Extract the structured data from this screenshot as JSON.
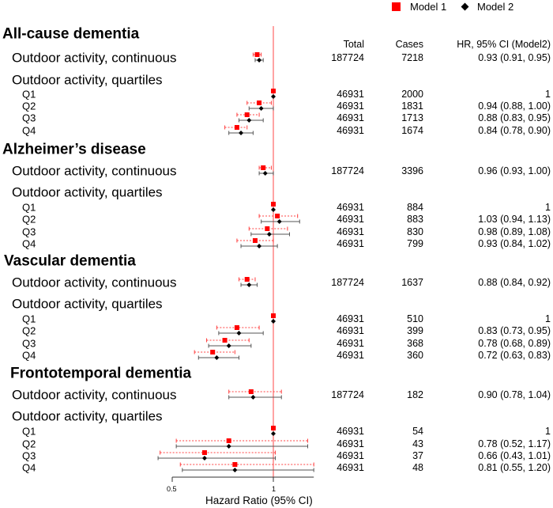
{
  "legend": {
    "model1": "Model 1",
    "model2": "Model 2"
  },
  "colors": {
    "model1": "#ff0000",
    "model2": "#000000",
    "reference_line": "#ff6666"
  },
  "columns": {
    "total": "Total",
    "cases": "Cases",
    "hr": "HR, 95% CI (Model2)"
  },
  "chart_data": {
    "type": "forest",
    "xlabel": "Hazard Ratio (95% CI)",
    "x_ticks": [
      "0.5",
      "1"
    ],
    "x_scale": "linear",
    "xlim": [
      0.5,
      1.2
    ],
    "reference_line": 1,
    "groups": [
      {
        "title": "All-cause dementia",
        "continuous": {
          "label": "Outdoor activity, continuous",
          "total": "187724",
          "cases": "7218",
          "hr_text": "0.93 (0.91, 0.95)",
          "model1": {
            "hr": 0.92,
            "lo": 0.9,
            "hi": 0.94
          },
          "model2": {
            "hr": 0.93,
            "lo": 0.91,
            "hi": 0.95
          }
        },
        "quartiles_label": "Outdoor activity, quartiles",
        "quartiles": [
          {
            "label": "Q1",
            "total": "46931",
            "cases": "2000",
            "hr_text": "1",
            "model1": {
              "hr": 1
            },
            "model2": {
              "hr": 1
            }
          },
          {
            "label": "Q2",
            "total": "46931",
            "cases": "1831",
            "hr_text": "0.94 (0.88, 1.00)",
            "model1": {
              "hr": 0.93,
              "lo": 0.87,
              "hi": 0.99
            },
            "model2": {
              "hr": 0.94,
              "lo": 0.88,
              "hi": 1.0
            }
          },
          {
            "label": "Q3",
            "total": "46931",
            "cases": "1713",
            "hr_text": "0.88 (0.83, 0.95)",
            "model1": {
              "hr": 0.87,
              "lo": 0.82,
              "hi": 0.93
            },
            "model2": {
              "hr": 0.88,
              "lo": 0.83,
              "hi": 0.95
            }
          },
          {
            "label": "Q4",
            "total": "46931",
            "cases": "1674",
            "hr_text": "0.84 (0.78, 0.90)",
            "model1": {
              "hr": 0.82,
              "lo": 0.76,
              "hi": 0.87
            },
            "model2": {
              "hr": 0.84,
              "lo": 0.78,
              "hi": 0.9
            }
          }
        ]
      },
      {
        "title": "Alzheimer’s disease",
        "continuous": {
          "label": "Outdoor activity, continuous",
          "total": "187724",
          "cases": "3396",
          "hr_text": "0.96 (0.93, 1.00)",
          "model1": {
            "hr": 0.95,
            "lo": 0.93,
            "hi": 0.99
          },
          "model2": {
            "hr": 0.96,
            "lo": 0.93,
            "hi": 1.0
          }
        },
        "quartiles_label": "Outdoor activity, quartiles",
        "quartiles": [
          {
            "label": "Q1",
            "total": "46931",
            "cases": "884",
            "hr_text": "1",
            "model1": {
              "hr": 1
            },
            "model2": {
              "hr": 1
            }
          },
          {
            "label": "Q2",
            "total": "46931",
            "cases": "883",
            "hr_text": "1.03 (0.94, 1.13)",
            "model1": {
              "hr": 1.02,
              "lo": 0.93,
              "hi": 1.12
            },
            "model2": {
              "hr": 1.03,
              "lo": 0.94,
              "hi": 1.13
            }
          },
          {
            "label": "Q3",
            "total": "46931",
            "cases": "830",
            "hr_text": "0.98 (0.89, 1.08)",
            "model1": {
              "hr": 0.97,
              "lo": 0.88,
              "hi": 1.07
            },
            "model2": {
              "hr": 0.98,
              "lo": 0.89,
              "hi": 1.08
            }
          },
          {
            "label": "Q4",
            "total": "46931",
            "cases": "799",
            "hr_text": "0.93 (0.84, 1.02)",
            "model1": {
              "hr": 0.91,
              "lo": 0.82,
              "hi": 1.0
            },
            "model2": {
              "hr": 0.93,
              "lo": 0.84,
              "hi": 1.02
            }
          }
        ]
      },
      {
        "title": "Vascular dementia",
        "continuous": {
          "label": "Outdoor activity, continuous",
          "total": "187724",
          "cases": "1637",
          "hr_text": "0.88 (0.84, 0.92)",
          "model1": {
            "hr": 0.87,
            "lo": 0.83,
            "hi": 0.91
          },
          "model2": {
            "hr": 0.88,
            "lo": 0.84,
            "hi": 0.92
          }
        },
        "quartiles_label": "Outdoor activity, quartiles",
        "quartiles": [
          {
            "label": "Q1",
            "total": "46931",
            "cases": "510",
            "hr_text": "1",
            "model1": {
              "hr": 1
            },
            "model2": {
              "hr": 1
            }
          },
          {
            "label": "Q2",
            "total": "46931",
            "cases": "399",
            "hr_text": "0.83 (0.73, 0.95)",
            "model1": {
              "hr": 0.82,
              "lo": 0.72,
              "hi": 0.93
            },
            "model2": {
              "hr": 0.83,
              "lo": 0.73,
              "hi": 0.95
            }
          },
          {
            "label": "Q3",
            "total": "46931",
            "cases": "368",
            "hr_text": "0.78 (0.68, 0.89)",
            "model1": {
              "hr": 0.76,
              "lo": 0.67,
              "hi": 0.88
            },
            "model2": {
              "hr": 0.78,
              "lo": 0.68,
              "hi": 0.89
            }
          },
          {
            "label": "Q4",
            "total": "46931",
            "cases": "360",
            "hr_text": "0.72 (0.63, 0.83)",
            "model1": {
              "hr": 0.7,
              "lo": 0.61,
              "hi": 0.81
            },
            "model2": {
              "hr": 0.72,
              "lo": 0.63,
              "hi": 0.83
            }
          }
        ]
      },
      {
        "title": "Frontotemporal dementia",
        "continuous": {
          "label": "Outdoor activity, continuous",
          "total": "187724",
          "cases": "182",
          "hr_text": "0.90 (0.78, 1.04)",
          "model1": {
            "hr": 0.89,
            "lo": 0.78,
            "hi": 1.04
          },
          "model2": {
            "hr": 0.9,
            "lo": 0.78,
            "hi": 1.04
          }
        },
        "quartiles_label": "Outdoor activity, quartiles",
        "quartiles": [
          {
            "label": "Q1",
            "total": "46931",
            "cases": "54",
            "hr_text": "1",
            "model1": {
              "hr": 1
            },
            "model2": {
              "hr": 1
            }
          },
          {
            "label": "Q2",
            "total": "46931",
            "cases": "43",
            "hr_text": "0.78 (0.52, 1.17)",
            "model1": {
              "hr": 0.78,
              "lo": 0.52,
              "hi": 1.17
            },
            "model2": {
              "hr": 0.78,
              "lo": 0.52,
              "hi": 1.17
            }
          },
          {
            "label": "Q3",
            "total": "46931",
            "cases": "37",
            "hr_text": "0.66 (0.43, 1.01)",
            "model1": {
              "hr": 0.66,
              "lo": 0.44,
              "hi": 1.01
            },
            "model2": {
              "hr": 0.66,
              "lo": 0.43,
              "hi": 1.01
            }
          },
          {
            "label": "Q4",
            "total": "46931",
            "cases": "48",
            "hr_text": "0.81 (0.55, 1.20)",
            "model1": {
              "hr": 0.81,
              "lo": 0.54,
              "hi": 1.2
            },
            "model2": {
              "hr": 0.81,
              "lo": 0.55,
              "hi": 1.2
            }
          }
        ]
      }
    ]
  }
}
